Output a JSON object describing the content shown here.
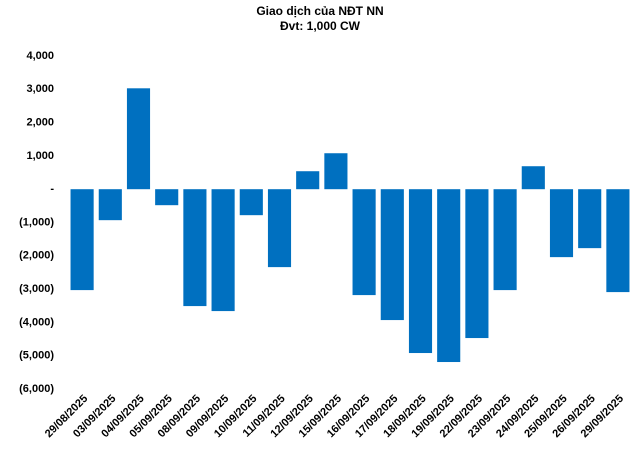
{
  "chart_data": {
    "type": "bar",
    "title": "Giao dịch của NĐT NN",
    "subtitle": "Đvt: 1,000 CW",
    "categories": [
      "29/08/2025",
      "03/09/2025",
      "04/09/2025",
      "05/09/2025",
      "08/09/2025",
      "09/09/2025",
      "10/09/2025",
      "11/09/2025",
      "12/09/2025",
      "15/09/2025",
      "16/09/2025",
      "17/09/2025",
      "18/09/2025",
      "19/09/2025",
      "22/09/2025",
      "23/09/2025",
      "24/09/2025",
      "25/09/2025",
      "26/09/2025",
      "29/09/2025"
    ],
    "values": [
      -3030,
      -930,
      3030,
      -480,
      -3510,
      -3660,
      -780,
      -2340,
      540,
      1080,
      -3180,
      -3930,
      -4920,
      -5190,
      -4470,
      -3030,
      690,
      -2040,
      -1770,
      -3090
    ],
    "color": "#0070c0",
    "ylim": [
      -6000,
      4000
    ],
    "yticks": [
      {
        "value": 4000,
        "label": "4,000"
      },
      {
        "value": 3000,
        "label": "3,000"
      },
      {
        "value": 2000,
        "label": "2,000"
      },
      {
        "value": 1000,
        "label": "1,000"
      },
      {
        "value": 0,
        "label": "-"
      },
      {
        "value": -1000,
        "label": "(1,000)"
      },
      {
        "value": -2000,
        "label": "(2,000)"
      },
      {
        "value": -3000,
        "label": "(3,000)"
      },
      {
        "value": -4000,
        "label": "(4,000)"
      },
      {
        "value": -5000,
        "label": "(5,000)"
      },
      {
        "value": -6000,
        "label": "(6,000)"
      }
    ],
    "grid": false
  }
}
